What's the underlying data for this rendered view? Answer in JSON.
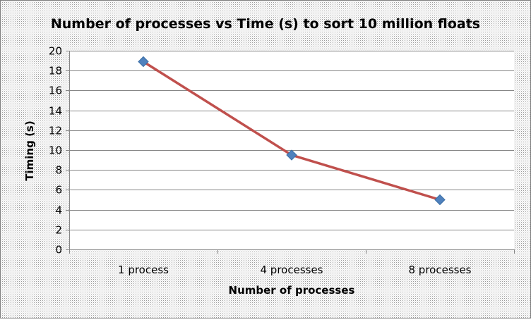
{
  "chart_data": {
    "type": "line",
    "title": "Number of processes vs Time (s) to sort 10 million floats",
    "xlabel": "Number of processes",
    "ylabel": "Timing (s)",
    "categories": [
      "1 process",
      "4 processes",
      "8 processes"
    ],
    "series": [
      {
        "values": [
          18.9,
          9.5,
          5.0
        ]
      }
    ],
    "ylim": [
      0,
      20
    ],
    "yticks": [
      0,
      2,
      4,
      6,
      8,
      10,
      12,
      14,
      16,
      18,
      20
    ],
    "grid": "horizontal",
    "legend": "none",
    "colors": {
      "line": "#c0504d",
      "marker": "#4f81bd",
      "marker_edge": "#3a6ea5",
      "gridline": "#868686",
      "axis": "#868686",
      "border": "#7f7f7f",
      "background_dots": "#9a9a9a"
    }
  }
}
